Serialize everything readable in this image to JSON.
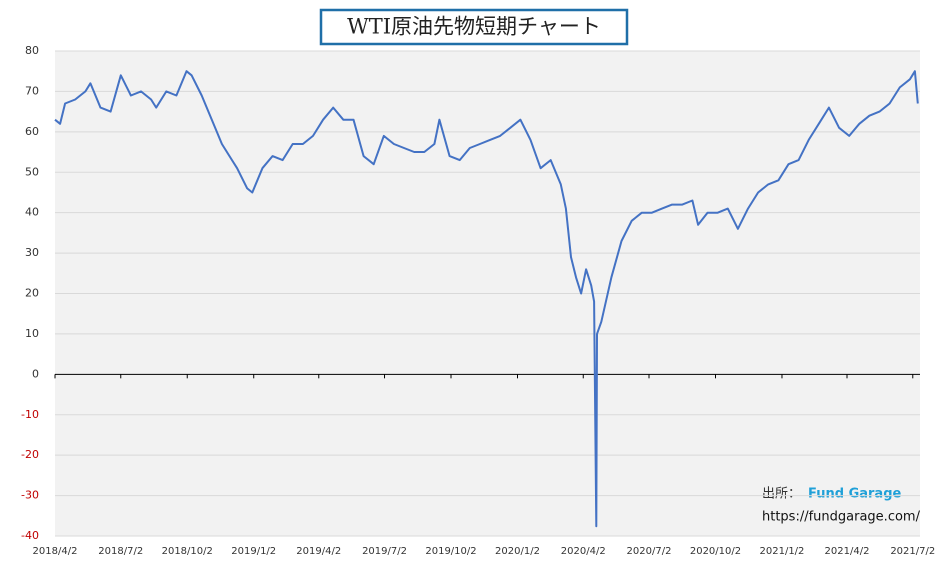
{
  "chart_data": {
    "type": "line",
    "title": "WTI原油先物短期チャート",
    "x": [
      "2018/4/2",
      "2018/4/9",
      "2018/4/16",
      "2018/4/30",
      "2018/5/14",
      "2018/5/21",
      "2018/6/4",
      "2018/6/18",
      "2018/7/2",
      "2018/7/16",
      "2018/7/30",
      "2018/8/13",
      "2018/8/20",
      "2018/9/3",
      "2018/9/17",
      "2018/10/1",
      "2018/10/8",
      "2018/10/22",
      "2018/11/5",
      "2018/11/19",
      "2018/12/3",
      "2018/12/10",
      "2018/12/24",
      "2018/12/31",
      "2019/1/14",
      "2019/1/28",
      "2019/2/11",
      "2019/2/25",
      "2019/3/11",
      "2019/3/25",
      "2019/4/8",
      "2019/4/22",
      "2019/5/6",
      "2019/5/20",
      "2019/6/3",
      "2019/6/17",
      "2019/7/1",
      "2019/7/15",
      "2019/7/29",
      "2019/8/12",
      "2019/8/26",
      "2019/9/9",
      "2019/9/16",
      "2019/9/30",
      "2019/10/14",
      "2019/10/28",
      "2019/11/11",
      "2019/11/25",
      "2019/12/9",
      "2019/12/23",
      "2020/1/6",
      "2020/1/20",
      "2020/2/3",
      "2020/2/17",
      "2020/3/2",
      "2020/3/9",
      "2020/3/16",
      "2020/3/23",
      "2020/3/30",
      "2020/4/6",
      "2020/4/13",
      "2020/4/17",
      "2020/4/20",
      "2020/4/21",
      "2020/4/27",
      "2020/5/11",
      "2020/5/25",
      "2020/6/8",
      "2020/6/22",
      "2020/7/6",
      "2020/7/20",
      "2020/8/3",
      "2020/8/17",
      "2020/8/31",
      "2020/9/8",
      "2020/9/21",
      "2020/10/5",
      "2020/10/19",
      "2020/11/2",
      "2020/11/16",
      "2020/11/30",
      "2020/12/14",
      "2020/12/28",
      "2021/1/11",
      "2021/1/25",
      "2021/2/8",
      "2021/2/22",
      "2021/3/8",
      "2021/3/22",
      "2021/4/5",
      "2021/4/19",
      "2021/5/3",
      "2021/5/17",
      "2021/5/31",
      "2021/6/14",
      "2021/6/28",
      "2021/7/5",
      "2021/7/9"
    ],
    "series": [
      {
        "name": "WTI",
        "color": "#4472c4",
        "values": [
          63,
          62,
          67,
          68,
          70,
          72,
          66,
          65,
          74,
          69,
          70,
          68,
          66,
          70,
          69,
          75,
          74,
          69,
          63,
          57,
          53,
          51,
          46,
          45,
          51,
          54,
          53,
          57,
          57,
          59,
          63,
          66,
          63,
          63,
          54,
          52,
          59,
          57,
          56,
          55,
          55,
          57,
          63,
          54,
          53,
          56,
          57,
          58,
          59,
          61,
          63,
          58,
          51,
          53,
          47,
          41,
          29,
          24,
          20,
          26,
          22,
          18,
          -37.6,
          10,
          13,
          24,
          33,
          38,
          40,
          40,
          41,
          42,
          42,
          43,
          37,
          40,
          40,
          41,
          36,
          41,
          45,
          47,
          48,
          52,
          53,
          58,
          62,
          66,
          61,
          59,
          62,
          64,
          65,
          67,
          71,
          73,
          75,
          67
        ]
      }
    ],
    "xlim": [
      "2018/4/2",
      "2021/7/12"
    ],
    "xticks": [
      "2018/4/2",
      "2018/7/2",
      "2018/10/2",
      "2019/1/2",
      "2019/4/2",
      "2019/7/2",
      "2019/10/2",
      "2020/1/2",
      "2020/4/2",
      "2020/7/2",
      "2020/10/2",
      "2021/1/2",
      "2021/4/2",
      "2021/7/2"
    ],
    "ylim": [
      -40,
      80
    ],
    "yticks": [
      -40,
      -30,
      -20,
      -10,
      0,
      10,
      20,
      30,
      40,
      50,
      60,
      70,
      80
    ],
    "grid": true,
    "negative_tick_color": "#c00000",
    "source_label": "出所：",
    "source_name": "Fund Garage",
    "source_url": "https://fundgarage.com/"
  }
}
